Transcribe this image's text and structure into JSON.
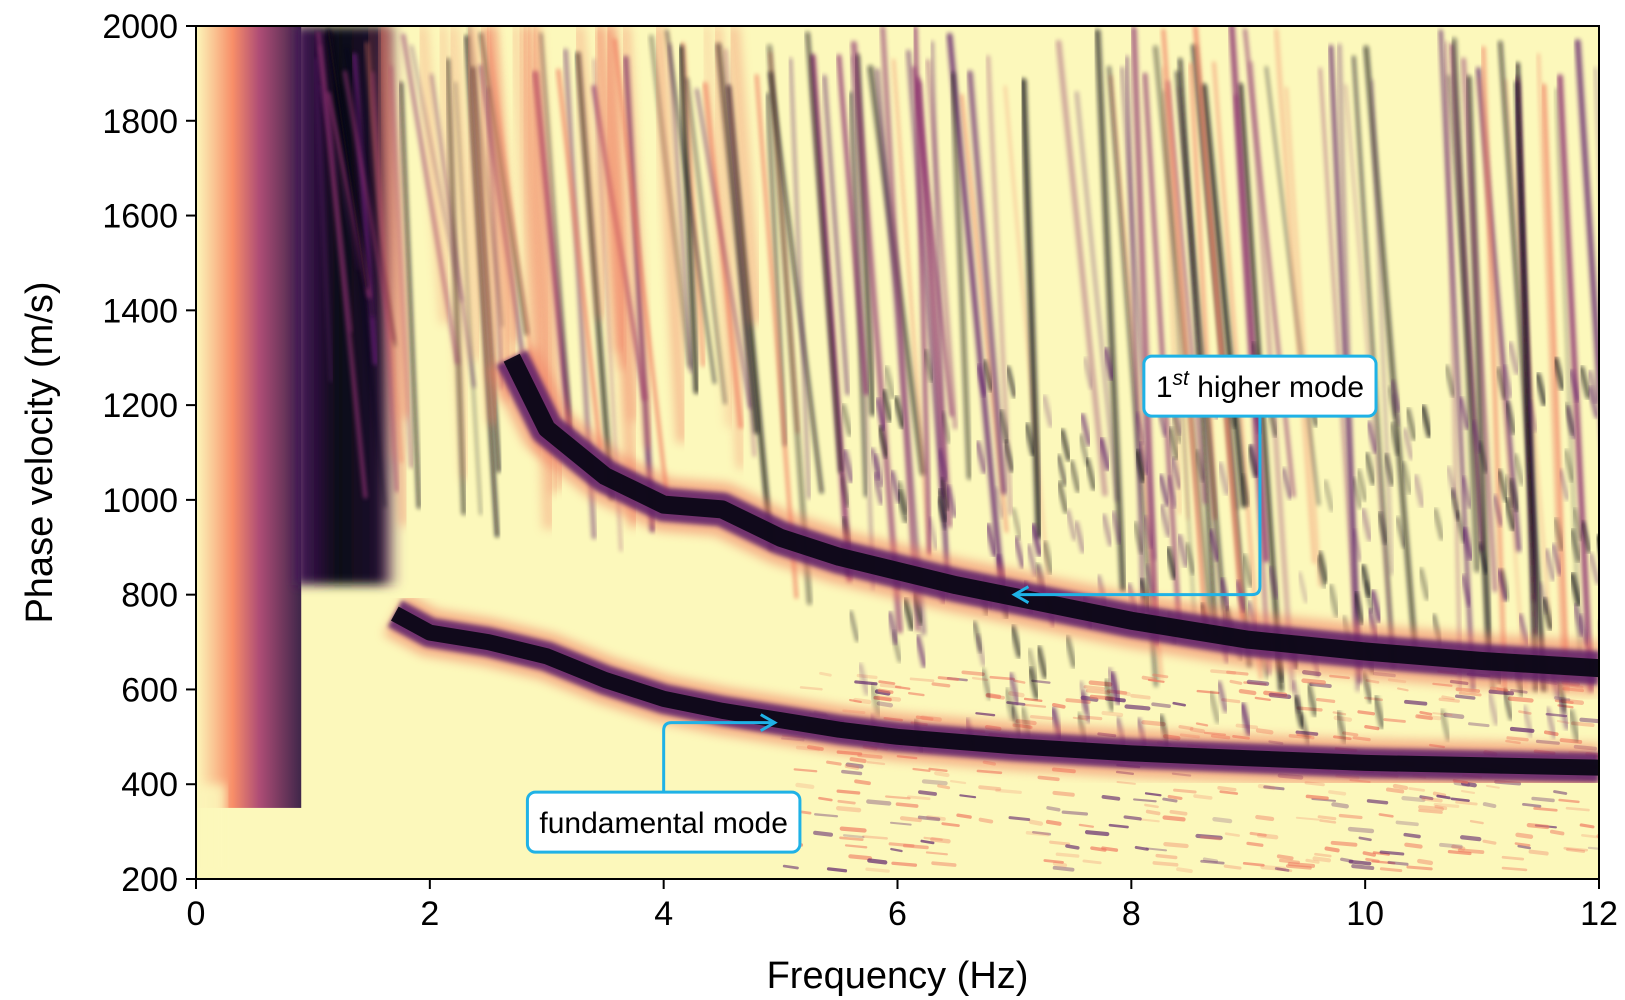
{
  "chart_data": {
    "type": "heatmap",
    "title": "",
    "xlabel": "Frequency (Hz)",
    "ylabel": "Phase velocity (m/s)",
    "xlim": [
      0,
      12
    ],
    "ylim": [
      200,
      2000
    ],
    "x_ticks": [
      0,
      2,
      4,
      6,
      8,
      10,
      12
    ],
    "y_ticks": [
      200,
      400,
      600,
      800,
      1000,
      1200,
      1400,
      1600,
      1800,
      2000
    ],
    "x_tick_labels": [
      "0",
      "2",
      "4",
      "6",
      "8",
      "10",
      "12"
    ],
    "y_tick_labels": [
      "200",
      "400",
      "600",
      "800",
      "1000",
      "1200",
      "1400",
      "1600",
      "1800",
      "2000"
    ],
    "grid": false,
    "colormap": "magma",
    "colors": {
      "background": "#fcf8bb",
      "ridge": "#0b0716",
      "ridge_mid": "#5c1f6b",
      "ridge_edge": "#f07b62",
      "annotation": "#1fb2e6",
      "left_band_hot": "#f7825f"
    },
    "modes": [
      {
        "label": "fundamental mode",
        "points": [
          [
            1.7,
            760
          ],
          [
            2.0,
            720
          ],
          [
            2.5,
            700
          ],
          [
            3.0,
            670
          ],
          [
            3.5,
            620
          ],
          [
            4.0,
            580
          ],
          [
            4.5,
            555
          ],
          [
            5.0,
            535
          ],
          [
            5.5,
            515
          ],
          [
            6.0,
            500
          ],
          [
            6.5,
            490
          ],
          [
            7.0,
            480
          ],
          [
            8.0,
            465
          ],
          [
            9.0,
            455
          ],
          [
            10.0,
            445
          ],
          [
            11.0,
            440
          ],
          [
            12.0,
            435
          ]
        ]
      },
      {
        "label": "1st higher mode",
        "points": [
          [
            2.7,
            1300
          ],
          [
            3.0,
            1150
          ],
          [
            3.5,
            1050
          ],
          [
            4.0,
            990
          ],
          [
            4.5,
            980
          ],
          [
            5.0,
            920
          ],
          [
            5.5,
            880
          ],
          [
            6.0,
            850
          ],
          [
            6.5,
            820
          ],
          [
            7.0,
            795
          ],
          [
            7.5,
            770
          ],
          [
            8.0,
            745
          ],
          [
            8.5,
            725
          ],
          [
            9.0,
            705
          ],
          [
            10.0,
            680
          ],
          [
            11.0,
            660
          ],
          [
            12.0,
            645
          ]
        ]
      }
    ],
    "annotations": [
      {
        "name": "fundamental",
        "text": "fundamental mode",
        "superscript": "",
        "text_rest": "",
        "arrow_to": [
          4.95,
          530
        ],
        "elbow": [
          4.0,
          530
        ],
        "box_anchor": [
          4.0,
          320
        ]
      },
      {
        "name": "higher",
        "text": "1",
        "superscript": "st",
        "text_rest": " higher mode",
        "arrow_to": [
          7.0,
          800
        ],
        "elbow": [
          9.1,
          800
        ],
        "box_anchor": [
          9.1,
          1240
        ]
      }
    ]
  }
}
